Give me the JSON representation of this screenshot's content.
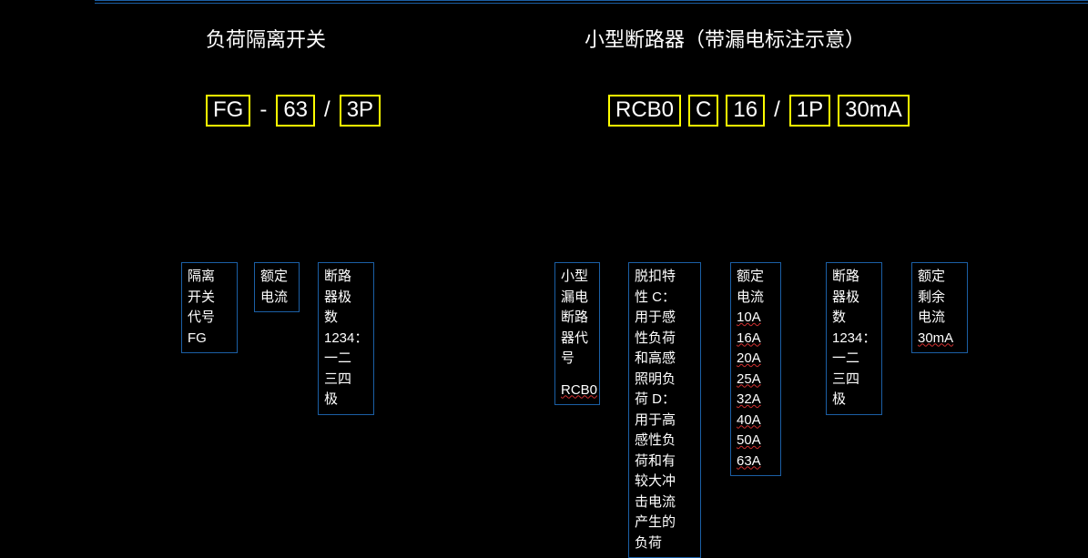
{
  "colors": {
    "background": "#000000",
    "text": "#ffffff",
    "box_border": "#1b5fa5",
    "highlight_border": "#ffff00",
    "wavy_underline": "#d03030"
  },
  "typography": {
    "title_fontsize": 22,
    "code_fontsize": 24,
    "legend_fontsize": 15
  },
  "left": {
    "title": "负荷隔离开关",
    "code": {
      "p0": "FG",
      "sep0": "-",
      "p1": "63",
      "sep1": "/",
      "p2": "3P"
    },
    "legend": {
      "b1": {
        "l1": "隔离",
        "l2": "开关",
        "l3": "代号",
        "l4": "FG"
      },
      "b2": {
        "l1": "额定",
        "l2": "电流"
      },
      "b3": {
        "l1": "断路",
        "l2": "器极",
        "l3": "数",
        "l4": "1234：",
        "l5": "一二",
        "l6": "三四",
        "l7": "极"
      }
    }
  },
  "right": {
    "title": "小型断路器（带漏电标注示意）",
    "code": {
      "p0": "RCB0",
      "p1": "C",
      "p2": "16",
      "sep0": "/",
      "p3": "1P",
      "p4": "30mA"
    },
    "legend": {
      "b1": {
        "l1": "小型",
        "l2": "漏电",
        "l3": "断路",
        "l4": "器代",
        "l5": "号",
        "l6": "RCB0"
      },
      "b2": {
        "l1": "脱扣特",
        "l2": "性 C：",
        "l3": "用于感",
        "l4": "性负荷",
        "l5": "和高感",
        "l6": "照明负",
        "l7": "荷 D：",
        "l8": "用于高",
        "l9": "感性负",
        "l10": "荷和有",
        "l11": "较大冲",
        "l12": "击电流",
        "l13": "产生的",
        "l14": "负荷"
      },
      "b3": {
        "l1": "额定",
        "l2": "电流",
        "a1": "10A",
        "a2": "16A",
        "a3": "20A",
        "a4": "25A",
        "a5": "32A",
        "a6": "40A",
        "a7": "50A",
        "a8": "63A"
      },
      "b4": {
        "l1": "断路",
        "l2": "器极",
        "l3": "数",
        "l4": "1234：",
        "l5": "一二",
        "l6": "三四",
        "l7": "极"
      },
      "b5": {
        "l1": "额定",
        "l2": "剩余",
        "l3": "电流",
        "l4": "30mA"
      }
    }
  }
}
